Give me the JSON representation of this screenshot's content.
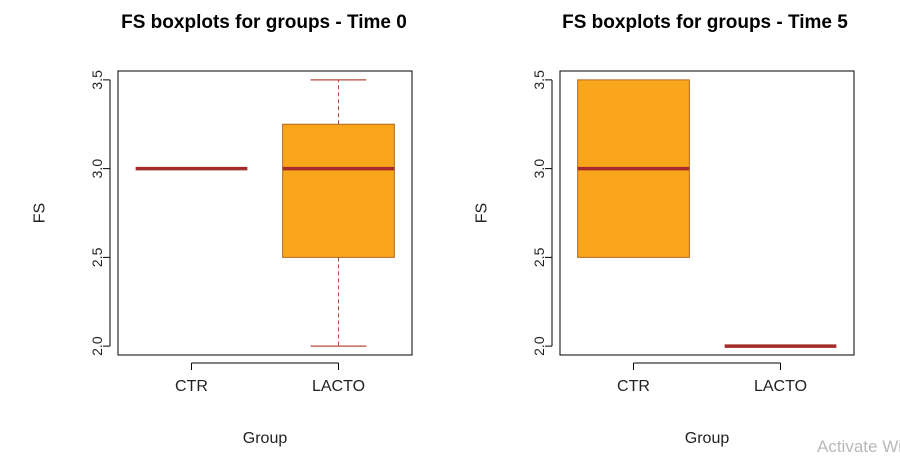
{
  "chart_data": [
    {
      "type": "boxplot",
      "title": "FS boxplots for groups - Time 0",
      "xlabel": "Group",
      "ylabel": "FS",
      "categories": [
        "CTR",
        "LACTO"
      ],
      "ylim": [
        1.95,
        3.55
      ],
      "yticks": [
        "2.0",
        "2.5",
        "3.0",
        "3.5"
      ],
      "boxes": [
        {
          "group": "CTR",
          "min": 3.0,
          "q1": 3.0,
          "median": 3.0,
          "q3": 3.0,
          "max": 3.0
        },
        {
          "group": "LACTO",
          "min": 2.0,
          "q1": 2.5,
          "median": 3.0,
          "q3": 3.25,
          "max": 3.5
        }
      ],
      "box_fill": "#F9A61D",
      "box_stroke": "#B5651D",
      "median_color": "#A52A2A",
      "whisker_color": "#B84A3A"
    },
    {
      "type": "boxplot",
      "title": "FS boxplots for groups - Time 5",
      "xlabel": "Group",
      "ylabel": "FS",
      "categories": [
        "CTR",
        "LACTO"
      ],
      "ylim": [
        1.95,
        3.55
      ],
      "yticks": [
        "2.0",
        "2.5",
        "3.0",
        "3.5"
      ],
      "boxes": [
        {
          "group": "CTR",
          "min": 2.5,
          "q1": 2.5,
          "median": 3.0,
          "q3": 3.5,
          "max": 3.5
        },
        {
          "group": "LACTO",
          "min": 2.0,
          "q1": 2.0,
          "median": 2.0,
          "q3": 2.0,
          "max": 2.0
        }
      ],
      "box_fill": "#F9A61D",
      "box_stroke": "#B5651D",
      "median_color": "#A52A2A",
      "whisker_color": "#B84A3A"
    }
  ],
  "watermark_text": "Activate Windows"
}
